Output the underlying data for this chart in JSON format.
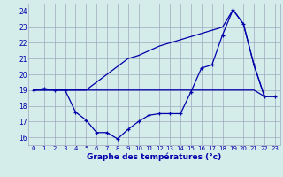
{
  "xlabel": "Graphe des températures (°c)",
  "background_color": "#d4ecea",
  "grid_color": "#a0a8c0",
  "line_color": "#0000aa",
  "hours": [
    0,
    1,
    2,
    3,
    4,
    5,
    6,
    7,
    8,
    9,
    10,
    11,
    12,
    13,
    14,
    15,
    16,
    17,
    18,
    19,
    20,
    21,
    22,
    23
  ],
  "temp_actual": [
    19.0,
    19.1,
    19.0,
    19.0,
    17.6,
    17.1,
    16.3,
    16.3,
    15.9,
    16.5,
    17.0,
    17.4,
    17.5,
    17.5,
    17.5,
    18.9,
    20.4,
    20.6,
    22.5,
    24.1,
    23.2,
    20.6,
    18.6,
    18.6
  ],
  "temp_flat": [
    19.0,
    19.0,
    19.0,
    19.0,
    19.0,
    19.0,
    19.0,
    19.0,
    19.0,
    19.0,
    19.0,
    19.0,
    19.0,
    19.0,
    19.0,
    19.0,
    19.0,
    19.0,
    19.0,
    19.0,
    19.0,
    19.0,
    18.6,
    18.6
  ],
  "temp_trend": [
    19.0,
    19.0,
    19.0,
    19.0,
    19.0,
    19.0,
    19.5,
    20.0,
    20.5,
    21.0,
    21.2,
    21.5,
    21.8,
    22.0,
    22.2,
    22.4,
    22.6,
    22.8,
    23.0,
    24.1,
    23.2,
    20.6,
    18.6,
    18.6
  ],
  "ylim": [
    15.5,
    24.5
  ],
  "yticks": [
    16,
    17,
    18,
    19,
    20,
    21,
    22,
    23,
    24
  ],
  "figsize": [
    3.2,
    2.0
  ],
  "dpi": 100
}
